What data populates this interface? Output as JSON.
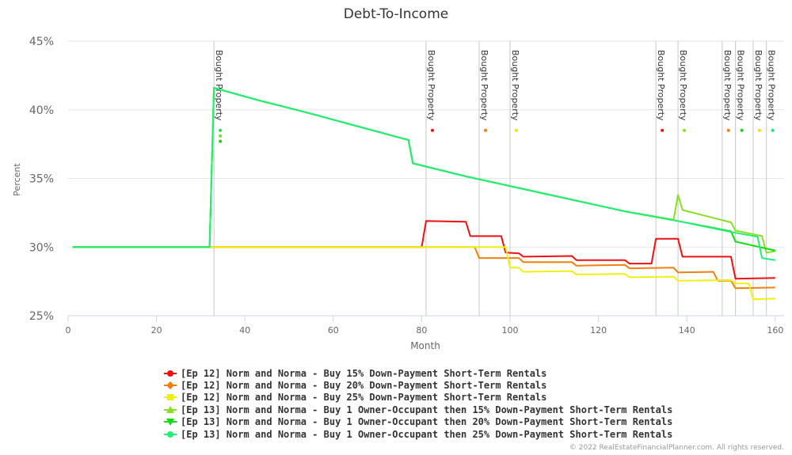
{
  "chart_data": {
    "type": "line",
    "title": "Debt-To-Income",
    "xlabel": "Month",
    "ylabel": "Percent",
    "xlim": [
      0,
      162
    ],
    "ylim": [
      25,
      45
    ],
    "x_ticks": [
      0,
      20,
      40,
      60,
      80,
      100,
      120,
      140,
      160
    ],
    "y_ticks": [
      25,
      30,
      35,
      40,
      45
    ],
    "y_tick_labels": [
      "25%",
      "30%",
      "35%",
      "40%",
      "45%"
    ],
    "grid": true,
    "legend_position": "bottom",
    "plot_lines": [
      {
        "x": 33,
        "label": "Bought Property",
        "dots": [
          {
            "y": 38.5,
            "color": "#22dd55"
          },
          {
            "y": 38.1,
            "color": "#77dd22"
          },
          {
            "y": 37.7,
            "color": "#22cc22"
          }
        ]
      },
      {
        "x": 81,
        "label": "Bought Property",
        "dots": [
          {
            "y": 38.5,
            "color": "#ee1111"
          }
        ]
      },
      {
        "x": 93,
        "label": "Bought Property",
        "dots": [
          {
            "y": 38.5,
            "color": "#f08010"
          }
        ]
      },
      {
        "x": 100,
        "label": "Bought Property",
        "dots": [
          {
            "y": 38.5,
            "color": "#f0e010"
          }
        ]
      },
      {
        "x": 133,
        "label": "Bought Property",
        "dots": [
          {
            "y": 38.5,
            "color": "#ee1111"
          }
        ]
      },
      {
        "x": 138,
        "label": "Bought Property",
        "dots": [
          {
            "y": 38.5,
            "color": "#88dd22"
          }
        ]
      },
      {
        "x": 148,
        "label": "Bought Property",
        "dots": [
          {
            "y": 38.5,
            "color": "#f08010"
          }
        ]
      },
      {
        "x": 151,
        "label": "Bought Property",
        "dots": [
          {
            "y": 38.5,
            "color": "#22cc22"
          }
        ]
      },
      {
        "x": 155,
        "label": "Bought Property",
        "dots": [
          {
            "y": 38.5,
            "color": "#f0e010"
          }
        ]
      },
      {
        "x": 158,
        "label": "Bought Property",
        "dots": [
          {
            "y": 38.5,
            "color": "#22dd88"
          }
        ]
      }
    ],
    "series": [
      {
        "name": "[Ep 12] Norm and Norma - Buy 15% Down-Payment Short-Term Rentals",
        "color": "#ee1111",
        "marker": "circle",
        "points": [
          [
            1,
            30
          ],
          [
            80,
            30
          ],
          [
            81,
            31.9
          ],
          [
            90,
            31.85
          ],
          [
            91,
            30.8
          ],
          [
            98,
            30.8
          ],
          [
            99,
            29.6
          ],
          [
            102,
            29.55
          ],
          [
            103,
            29.3
          ],
          [
            114,
            29.35
          ],
          [
            115,
            29.05
          ],
          [
            126,
            29.05
          ],
          [
            127,
            28.8
          ],
          [
            132,
            28.8
          ],
          [
            133,
            30.6
          ],
          [
            138,
            30.6
          ],
          [
            139,
            29.3
          ],
          [
            150,
            29.3
          ],
          [
            151,
            27.7
          ],
          [
            160,
            27.75
          ]
        ]
      },
      {
        "name": "[Ep 12] Norm and Norma - Buy 20% Down-Payment Short-Term Rentals",
        "color": "#f08010",
        "marker": "diamond",
        "points": [
          [
            1,
            30
          ],
          [
            92,
            30
          ],
          [
            93,
            29.2
          ],
          [
            102,
            29.2
          ],
          [
            103,
            28.9
          ],
          [
            114,
            28.9
          ],
          [
            115,
            28.65
          ],
          [
            126,
            28.7
          ],
          [
            127,
            28.45
          ],
          [
            137,
            28.5
          ],
          [
            138,
            28.15
          ],
          [
            146,
            28.2
          ],
          [
            147,
            27.55
          ],
          [
            150,
            27.55
          ],
          [
            151,
            27.0
          ],
          [
            160,
            27.05
          ]
        ]
      },
      {
        "name": "[Ep 12] Norm and Norma - Buy 25% Down-Payment Short-Term Rentals",
        "color": "#f0f010",
        "marker": "square",
        "points": [
          [
            1,
            30
          ],
          [
            99,
            30
          ],
          [
            100,
            28.5
          ],
          [
            102,
            28.5
          ],
          [
            103,
            28.2
          ],
          [
            114,
            28.25
          ],
          [
            115,
            28.0
          ],
          [
            126,
            28.05
          ],
          [
            127,
            27.8
          ],
          [
            137,
            27.85
          ],
          [
            138,
            27.55
          ],
          [
            150,
            27.6
          ],
          [
            151,
            27.35
          ],
          [
            154,
            27.35
          ],
          [
            155,
            26.2
          ],
          [
            160,
            26.25
          ]
        ]
      },
      {
        "name": "[Ep 13] Norm and Norma - Buy 1 Owner-Occupant then 15% Down-Payment Short-Term Rentals",
        "color": "#88e020",
        "marker": "triangle",
        "points": [
          [
            1,
            30
          ],
          [
            32,
            30
          ],
          [
            33,
            41.6
          ],
          [
            43,
            40.7
          ],
          [
            54,
            39.8
          ],
          [
            66,
            38.75
          ],
          [
            77,
            37.8
          ],
          [
            78,
            36.1
          ],
          [
            90,
            35.15
          ],
          [
            102,
            34.3
          ],
          [
            114,
            33.45
          ],
          [
            126,
            32.6
          ],
          [
            137,
            32.0
          ],
          [
            138,
            33.8
          ],
          [
            139,
            32.7
          ],
          [
            150,
            31.8
          ],
          [
            151,
            31.2
          ],
          [
            157,
            30.8
          ],
          [
            158,
            29.6
          ],
          [
            160,
            29.7
          ]
        ]
      },
      {
        "name": "[Ep 13] Norm and Norma - Buy 1 Owner-Occupant then 20% Down-Payment Short-Term Rentals",
        "color": "#11dd11",
        "marker": "triangle-down",
        "points": [
          [
            1,
            30
          ],
          [
            32,
            30
          ],
          [
            33,
            41.6
          ],
          [
            43,
            40.7
          ],
          [
            54,
            39.8
          ],
          [
            66,
            38.75
          ],
          [
            77,
            37.8
          ],
          [
            78,
            36.1
          ],
          [
            90,
            35.15
          ],
          [
            102,
            34.3
          ],
          [
            114,
            33.45
          ],
          [
            126,
            32.6
          ],
          [
            138,
            31.9
          ],
          [
            150,
            31.15
          ],
          [
            151,
            30.4
          ],
          [
            160,
            29.75
          ]
        ]
      },
      {
        "name": "[Ep 13] Norm and Norma - Buy 1 Owner-Occupant then 25% Down-Payment Short-Term Rentals",
        "color": "#22ee77",
        "marker": "circle",
        "points": [
          [
            1,
            30
          ],
          [
            32,
            30
          ],
          [
            33,
            41.6
          ],
          [
            43,
            40.7
          ],
          [
            54,
            39.8
          ],
          [
            66,
            38.75
          ],
          [
            77,
            37.8
          ],
          [
            78,
            36.1
          ],
          [
            90,
            35.15
          ],
          [
            102,
            34.3
          ],
          [
            114,
            33.45
          ],
          [
            126,
            32.6
          ],
          [
            138,
            31.9
          ],
          [
            150,
            31.1
          ],
          [
            156,
            30.75
          ],
          [
            157,
            29.2
          ],
          [
            160,
            29.05
          ]
        ]
      }
    ]
  },
  "credit": "© 2022 RealEstateFinancialPlanner.com. All rights reserved."
}
